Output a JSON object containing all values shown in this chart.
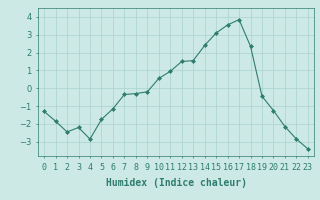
{
  "x": [
    0,
    1,
    2,
    3,
    4,
    5,
    6,
    7,
    8,
    9,
    10,
    11,
    12,
    13,
    14,
    15,
    16,
    17,
    18,
    19,
    20,
    21,
    22,
    23
  ],
  "y": [
    -1.3,
    -1.85,
    -2.45,
    -2.2,
    -2.85,
    -1.75,
    -1.15,
    -0.35,
    -0.3,
    -0.2,
    0.55,
    0.95,
    1.5,
    1.55,
    2.4,
    3.1,
    3.55,
    3.85,
    2.35,
    -0.45,
    -1.25,
    -2.15,
    -2.85,
    -3.4
  ],
  "line_color": "#2e7d6e",
  "marker": "D",
  "marker_size": 2,
  "bg_color": "#cce9e5",
  "grid_color": "#b0d5d0",
  "xlabel": "Humidex (Indice chaleur)",
  "xlabel_fontsize": 7,
  "tick_fontsize": 6,
  "ylim": [
    -3.8,
    4.5
  ],
  "yticks": [
    -3,
    -2,
    -1,
    0,
    1,
    2,
    3,
    4
  ],
  "xtick_labels": [
    "0",
    "1",
    "2",
    "3",
    "4",
    "5",
    "6",
    "7",
    "8",
    "9",
    "10",
    "11",
    "12",
    "13",
    "14",
    "15",
    "16",
    "17",
    "18",
    "19",
    "20",
    "21",
    "22",
    "23"
  ]
}
